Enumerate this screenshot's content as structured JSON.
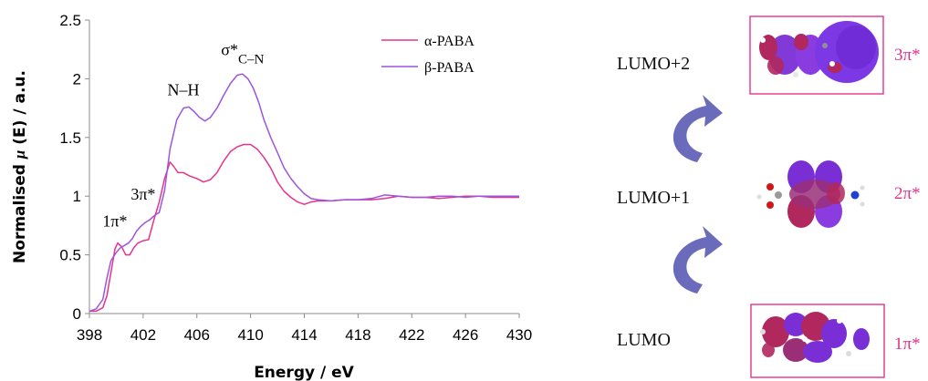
{
  "chart_data": {
    "type": "line",
    "xlabel": "Energy / eV",
    "ylabel_prefix": "Normalised ",
    "ylabel_mu": "μ",
    "ylabel_suffix": " (E) / a.u.",
    "xlim": [
      398,
      430
    ],
    "ylim": [
      0,
      2.5
    ],
    "xticks": [
      "398",
      "402",
      "406",
      "410",
      "414",
      "418",
      "422",
      "426",
      "430"
    ],
    "yticks": [
      "0",
      "0.5",
      "1",
      "1.5",
      "2",
      "2.5"
    ],
    "grid": false,
    "legend": "top-right",
    "series": [
      {
        "name": "α-PABA",
        "color": "#e6338c",
        "x": [
          398,
          398.5,
          399,
          399.3,
          399.6,
          399.9,
          400.1,
          400.4,
          400.7,
          401.0,
          401.3,
          401.6,
          402.0,
          402.4,
          402.8,
          403.2,
          403.6,
          404.0,
          404.3,
          404.6,
          405.0,
          405.5,
          406.0,
          406.5,
          407.0,
          407.5,
          408.0,
          408.5,
          409.0,
          409.5,
          410.0,
          410.5,
          411.0,
          411.5,
          412.0,
          412.5,
          413.0,
          413.5,
          414.0,
          414.5,
          415.0,
          416.0,
          417.0,
          418.0,
          419.0,
          420.0,
          421.0,
          422.0,
          423.0,
          424.0,
          425.0,
          426.0,
          427.0,
          428.0,
          429.0,
          430.0
        ],
        "y": [
          0.02,
          0.02,
          0.05,
          0.15,
          0.35,
          0.55,
          0.6,
          0.57,
          0.5,
          0.5,
          0.56,
          0.6,
          0.62,
          0.63,
          0.8,
          0.95,
          1.15,
          1.29,
          1.25,
          1.2,
          1.2,
          1.17,
          1.15,
          1.12,
          1.14,
          1.2,
          1.3,
          1.38,
          1.42,
          1.44,
          1.44,
          1.4,
          1.33,
          1.24,
          1.12,
          1.04,
          0.99,
          0.95,
          0.93,
          0.95,
          0.96,
          0.96,
          0.97,
          0.97,
          0.97,
          0.98,
          1.0,
          0.99,
          0.99,
          0.98,
          0.99,
          1.0,
          1.0,
          0.99,
          0.99,
          0.99
        ]
      },
      {
        "name": "β-PABA",
        "color": "#9b55e0",
        "x": [
          398,
          398.5,
          399,
          399.3,
          399.6,
          400.0,
          400.3,
          400.6,
          400.9,
          401.2,
          401.5,
          401.8,
          402.1,
          402.5,
          402.9,
          403.2,
          403.6,
          404.0,
          404.5,
          405.0,
          405.4,
          405.8,
          406.2,
          406.6,
          407.0,
          407.5,
          408.0,
          408.5,
          409.0,
          409.4,
          409.8,
          410.2,
          410.6,
          411.0,
          411.5,
          412.0,
          412.5,
          413.0,
          413.5,
          414.0,
          414.5,
          415.0,
          416.0,
          417.0,
          418.0,
          419.0,
          420.0,
          421.0,
          422.0,
          423.0,
          424.0,
          425.0,
          426.0,
          427.0,
          428.0,
          429.0,
          430.0
        ],
        "y": [
          0.02,
          0.04,
          0.12,
          0.3,
          0.45,
          0.52,
          0.56,
          0.58,
          0.6,
          0.64,
          0.7,
          0.74,
          0.77,
          0.8,
          0.84,
          0.86,
          1.05,
          1.4,
          1.65,
          1.75,
          1.76,
          1.72,
          1.67,
          1.64,
          1.67,
          1.75,
          1.86,
          1.96,
          2.03,
          2.04,
          2.0,
          1.92,
          1.8,
          1.65,
          1.5,
          1.37,
          1.24,
          1.15,
          1.08,
          1.02,
          0.98,
          0.97,
          0.96,
          0.97,
          0.97,
          0.98,
          1.01,
          1.0,
          0.99,
          0.99,
          1.0,
          1.0,
          0.99,
          1.0,
          1.0,
          1.0,
          1.0
        ]
      }
    ],
    "annotations": [
      {
        "text": "1π*",
        "x": 399.9,
        "y": 0.74
      },
      {
        "text": "3π*",
        "x": 402.0,
        "y": 0.97
      },
      {
        "text": "N–H",
        "x": 405.0,
        "y": 1.86
      },
      {
        "text": "σ*",
        "sub": "C–N",
        "x": 409.4,
        "y": 2.2
      }
    ]
  },
  "diagram": {
    "levels": [
      {
        "label": "LUMO+2",
        "symmetry": "3π*"
      },
      {
        "label": "LUMO+1",
        "symmetry": "2π*"
      },
      {
        "label": "LUMO",
        "symmetry": "1π*"
      }
    ],
    "box_color": "#e6338c",
    "arrow_color": "#5b5bb5",
    "lobe_colors": {
      "magenta": "#b0285e",
      "purple": "#7a2fd6"
    }
  }
}
